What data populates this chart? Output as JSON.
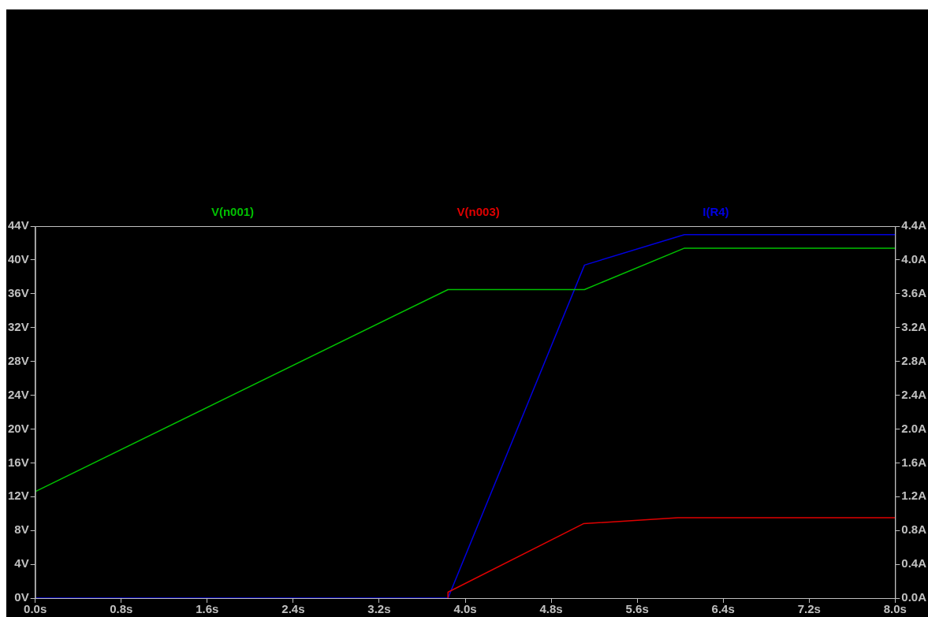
{
  "chart_data": {
    "type": "line",
    "legend": "top",
    "grid": false,
    "marker": "none",
    "line_style": "solid",
    "xlim": [
      0,
      8
    ],
    "xticks": [
      {
        "value": 0,
        "label": "0.0s"
      },
      {
        "value": 0.8,
        "label": "0.8s"
      },
      {
        "value": 1.6,
        "label": "1.6s"
      },
      {
        "value": 2.4,
        "label": "2.4s"
      },
      {
        "value": 3.2,
        "label": "3.2s"
      },
      {
        "value": 4,
        "label": "4.0s"
      },
      {
        "value": 4.8,
        "label": "4.8s"
      },
      {
        "value": 5.6,
        "label": "5.6s"
      },
      {
        "value": 6.4,
        "label": "6.4s"
      },
      {
        "value": 7.2,
        "label": "7.2s"
      },
      {
        "value": 8,
        "label": "8.0s"
      }
    ],
    "ylim": [
      0,
      44
    ],
    "yticks": [
      {
        "value": 0,
        "label": "0V"
      },
      {
        "value": 4,
        "label": "4V"
      },
      {
        "value": 8,
        "label": "8V"
      },
      {
        "value": 12,
        "label": "12V"
      },
      {
        "value": 16,
        "label": "16V"
      },
      {
        "value": 20,
        "label": "20V"
      },
      {
        "value": 24,
        "label": "24V"
      },
      {
        "value": 28,
        "label": "28V"
      },
      {
        "value": 32,
        "label": "32V"
      },
      {
        "value": 36,
        "label": "36V"
      },
      {
        "value": 40,
        "label": "40V"
      },
      {
        "value": 44,
        "label": "44V"
      }
    ],
    "y2lim": [
      0,
      4.4
    ],
    "y2ticks": [
      {
        "value": 0,
        "label": "0.0A"
      },
      {
        "value": 0.4,
        "label": "0.4A"
      },
      {
        "value": 0.8,
        "label": "0.8A"
      },
      {
        "value": 1.2,
        "label": "1.2A"
      },
      {
        "value": 1.6,
        "label": "1.6A"
      },
      {
        "value": 2,
        "label": "2.0A"
      },
      {
        "value": 2.4,
        "label": "2.4A"
      },
      {
        "value": 2.8,
        "label": "2.8A"
      },
      {
        "value": 3.2,
        "label": "3.2A"
      },
      {
        "value": 3.6,
        "label": "3.6A"
      },
      {
        "value": 4,
        "label": "4.0A"
      },
      {
        "value": 4.4,
        "label": "4.4A"
      }
    ],
    "series": [
      {
        "name": "V(n001)",
        "color": "#00c000",
        "x": [
          0,
          3.84,
          5.11,
          6.04,
          8
        ],
        "values": [
          12.6,
          36.5,
          36.5,
          41.4,
          41.4
        ]
      },
      {
        "name": "V(n003)",
        "color": "#e00000",
        "x": [
          3.84,
          3.84,
          5.1,
          5.98,
          8
        ],
        "values": [
          0,
          0.7,
          8.8,
          9.5,
          9.5
        ]
      },
      {
        "name": "I(R4)",
        "color": "#0000e0",
        "axis": "y2",
        "x": [
          0,
          3.84,
          5.11,
          6.04,
          8
        ],
        "values": [
          0,
          0,
          3.94,
          4.3,
          4.3
        ]
      }
    ]
  }
}
